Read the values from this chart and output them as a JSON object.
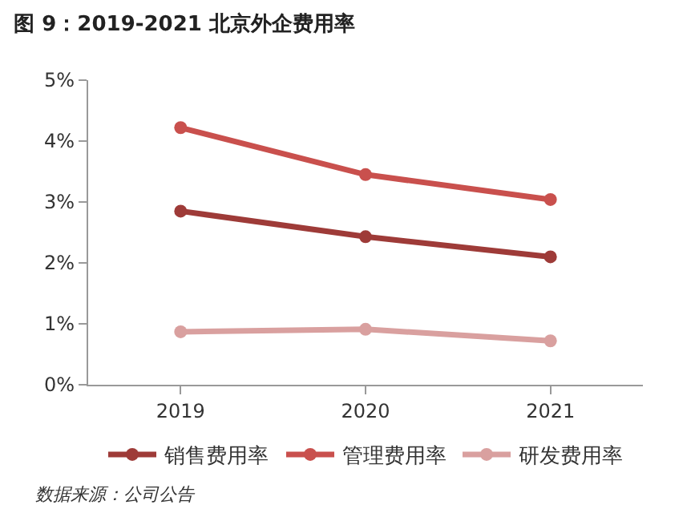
{
  "chart_data": {
    "type": "line",
    "title": "图 9：2019-2021 北京外企费用率",
    "categories": [
      "2019",
      "2020",
      "2021"
    ],
    "series": [
      {
        "name": "销售费用率",
        "color": "#9e3b38",
        "values": [
          2.85,
          2.43,
          2.1
        ]
      },
      {
        "name": "管理费用率",
        "color": "#c9504d",
        "values": [
          4.22,
          3.45,
          3.04
        ]
      },
      {
        "name": "研发费用率",
        "color": "#d9a09f",
        "values": [
          0.87,
          0.91,
          0.72
        ]
      }
    ],
    "ylim": [
      0,
      5
    ],
    "yticks": [
      {
        "value": 0,
        "label": "0%"
      },
      {
        "value": 1,
        "label": "1%"
      },
      {
        "value": 2,
        "label": "2%"
      },
      {
        "value": 3,
        "label": "3%"
      },
      {
        "value": 4,
        "label": "4%"
      },
      {
        "value": 5,
        "label": "5%"
      }
    ],
    "grid": false,
    "legend": "bottom",
    "marker": "circle",
    "line_style": "solid",
    "annotations": [
      "数据来源：公司公告"
    ]
  }
}
